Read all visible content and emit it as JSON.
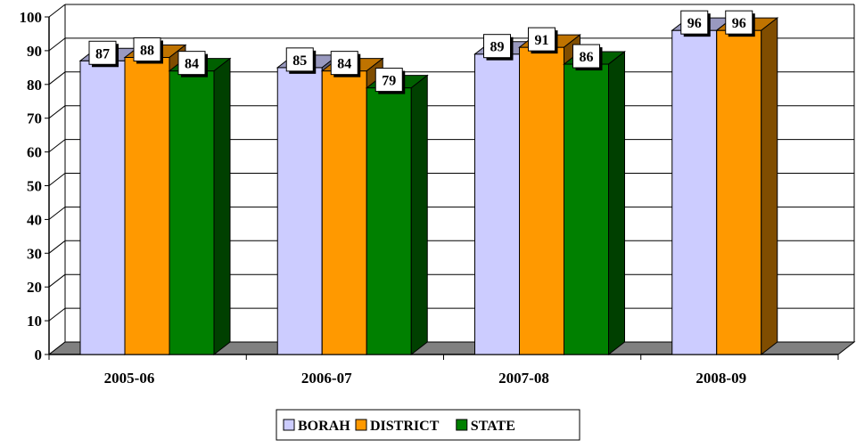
{
  "colors": {
    "BORAH": "#ccccff",
    "DISTRICT": "#ff9900",
    "STATE": "#008000",
    "grid": "#000000",
    "floor": "#808080"
  },
  "chart_data": {
    "type": "bar",
    "title": "",
    "xlabel": "",
    "ylabel": "",
    "ylim": [
      0,
      100
    ],
    "yticks": [
      0,
      10,
      20,
      30,
      40,
      50,
      60,
      70,
      80,
      90,
      100
    ],
    "categories": [
      "2005-06",
      "2006-07",
      "2007-08",
      "2008-09"
    ],
    "series": [
      {
        "name": "BORAH",
        "values": [
          87,
          85,
          89,
          96
        ]
      },
      {
        "name": "DISTRICT",
        "values": [
          88,
          84,
          91,
          96
        ]
      },
      {
        "name": "STATE",
        "values": [
          84,
          79,
          86,
          null
        ]
      }
    ],
    "data_labels": true,
    "grid": true,
    "legend": "bottom-center",
    "style": "3d-clustered-column"
  }
}
